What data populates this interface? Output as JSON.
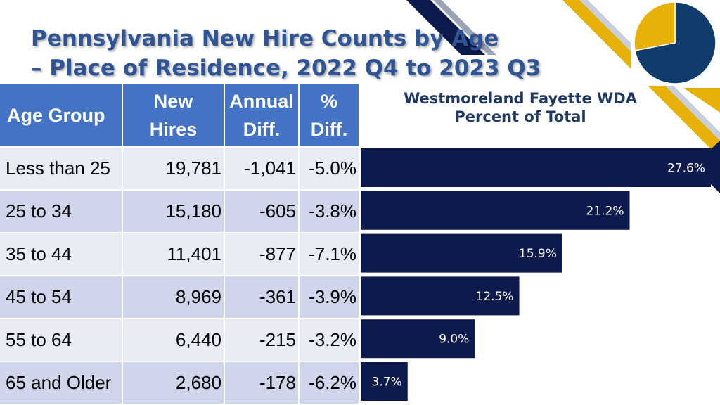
{
  "title": {
    "line1": "Pennsylvania New Hire Counts by Age",
    "line2": "– Place of Residence, 2022 Q4 to 2023 Q3"
  },
  "table": {
    "headers": {
      "age_group": "Age Group",
      "new_hires": [
        "New",
        "Hires"
      ],
      "annual_diff": [
        "Annual",
        "Diff."
      ],
      "pct_diff": [
        "%",
        "Diff."
      ]
    },
    "rows": [
      {
        "age": "Less than 25",
        "new_hires": "19,781",
        "annual_diff": "-1,041",
        "pct_diff": "-5.0%"
      },
      {
        "age": "25 to 34",
        "new_hires": "15,180",
        "annual_diff": "-605",
        "pct_diff": "-3.8%"
      },
      {
        "age": "35 to 44",
        "new_hires": "11,401",
        "annual_diff": "-877",
        "pct_diff": "-7.1%"
      },
      {
        "age": "45 to 54",
        "new_hires": "8,969",
        "annual_diff": "-361",
        "pct_diff": "-3.9%"
      },
      {
        "age": "55 to 64",
        "new_hires": "6,440",
        "annual_diff": "-215",
        "pct_diff": "-3.2%"
      },
      {
        "age": "65 and Older",
        "new_hires": "2,680",
        "annual_diff": "-178",
        "pct_diff": "-6.2%"
      }
    ]
  },
  "chart_data": {
    "type": "bar",
    "orientation": "horizontal",
    "title": [
      "Westmoreland Fayette WDA",
      "Percent of Total"
    ],
    "categories": [
      "Less than 25",
      "25 to 34",
      "35 to 44",
      "45 to 54",
      "55 to 64",
      "65 and Older"
    ],
    "values": [
      27.6,
      21.2,
      15.9,
      12.5,
      9.0,
      3.7
    ],
    "labels": [
      "27.6%",
      "21.2%",
      "15.9%",
      "12.5%",
      "9.0%",
      "3.7%"
    ],
    "xlim": [
      0,
      27.6
    ],
    "grid": false,
    "legend": "none",
    "bar_color": "#0c1a4d",
    "label_color": "#ffffff"
  },
  "pie_icon": {
    "values": [
      72,
      28
    ],
    "colors": [
      "#103c6b",
      "#e8b10a"
    ]
  },
  "colors": {
    "title": "#2f5597",
    "header_bg": "#4472c4",
    "row_odd": "#e9ecf5",
    "row_even": "#cfd5ea",
    "chart_title": "#1f3864",
    "accent_yellow": "#e8b10a",
    "accent_navy": "#0c1a4d"
  }
}
